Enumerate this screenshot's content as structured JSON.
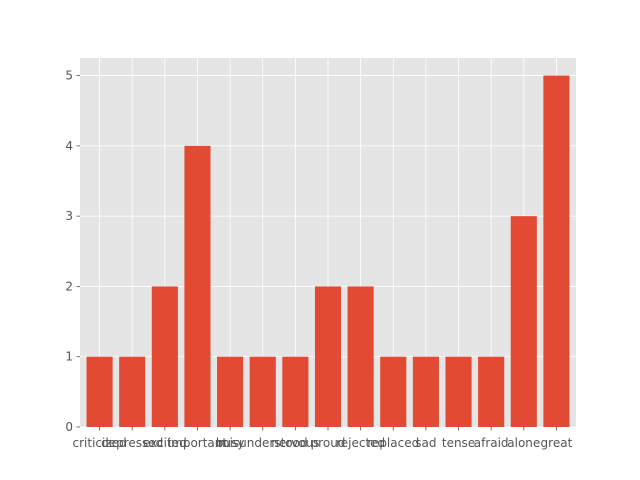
{
  "chart_data": {
    "type": "bar",
    "title": "",
    "xlabel": "",
    "ylabel": "",
    "categories": [
      "criticized",
      "depressed",
      "excited",
      "important",
      "busy",
      "misunderstood",
      "nervous",
      "proud",
      "rejected",
      "replaced",
      "sad",
      "tense",
      "afraid",
      "alone",
      "great"
    ],
    "values": [
      1,
      1,
      2,
      4,
      1,
      1,
      1,
      2,
      2,
      1,
      1,
      1,
      1,
      3,
      5
    ],
    "ylim": [
      0,
      5.25
    ],
    "yticks": [
      0,
      1,
      2,
      3,
      4,
      5
    ],
    "grid": true,
    "colors": {
      "bar": "#E24A33",
      "plot_bg": "#E5E5E5",
      "grid": "#FFFFFF",
      "tick_text": "#555555"
    }
  }
}
